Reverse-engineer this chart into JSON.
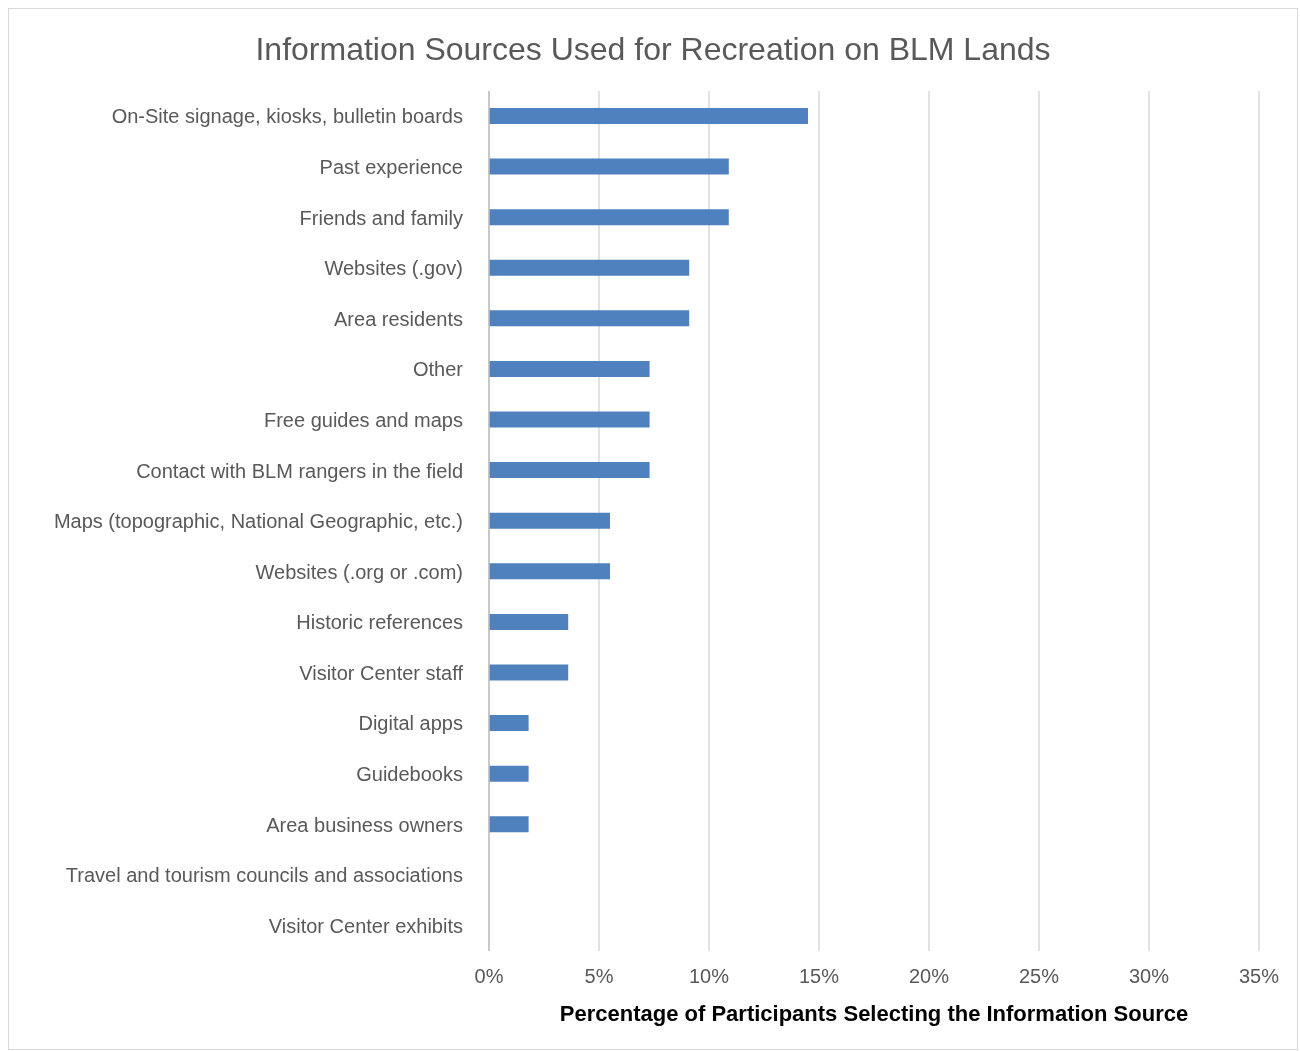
{
  "chart_data": {
    "type": "bar",
    "orientation": "horizontal",
    "title": "Information Sources Used for Recreation on BLM Lands",
    "xlabel": "Percentage of Participants Selecting the Information Source",
    "categories": [
      "On-Site signage, kiosks, bulletin boards",
      "Past experience",
      "Friends and family",
      "Websites (.gov)",
      "Area residents",
      "Other",
      "Free guides and maps",
      "Contact with BLM rangers in the field",
      "Maps (topographic, National Geographic, etc.)",
      "Websites (.org or .com)",
      "Historic references",
      "Visitor Center staff",
      "Digital apps",
      "Guidebooks",
      "Area business owners",
      "Travel and tourism councils and associations",
      "Visitor Center exhibits"
    ],
    "values": [
      14.5,
      10.9,
      10.9,
      9.1,
      9.1,
      7.3,
      7.3,
      7.3,
      5.5,
      5.5,
      3.6,
      3.6,
      1.8,
      1.8,
      1.8,
      0,
      0
    ],
    "color": "#4e81bd",
    "xlim": [
      0,
      35
    ],
    "xticks": [
      {
        "value": 0,
        "label": "0%"
      },
      {
        "value": 5,
        "label": "5%"
      },
      {
        "value": 10,
        "label": "10%"
      },
      {
        "value": 15,
        "label": "15%"
      },
      {
        "value": 20,
        "label": "20%"
      },
      {
        "value": 25,
        "label": "25%"
      },
      {
        "value": 30,
        "label": "30%"
      },
      {
        "value": 35,
        "label": "35%"
      }
    ],
    "grid": "x"
  }
}
